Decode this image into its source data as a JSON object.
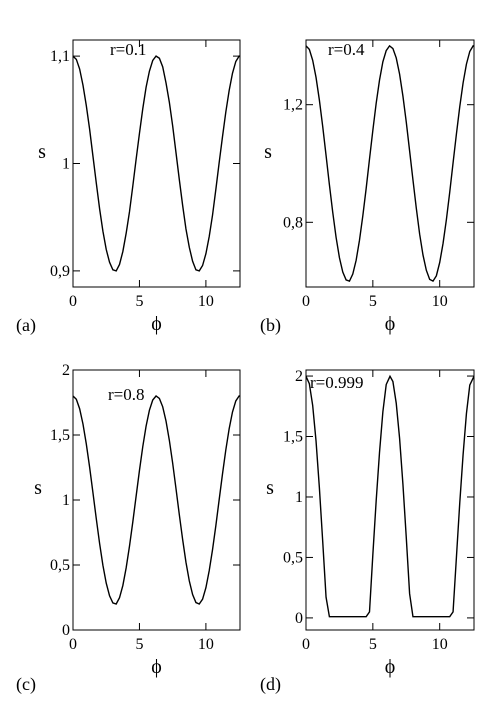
{
  "chart_data": [
    {
      "type": "line",
      "panel_label": "(a)",
      "annotation": "r=0.1",
      "xlabel": "ϕ",
      "ylabel": "s",
      "xlim": [
        0,
        12.566
      ],
      "ylim": [
        0.885,
        1.115
      ],
      "xticks": [
        0,
        5,
        10
      ],
      "xtick_labels": [
        "0",
        "5",
        "10"
      ],
      "yticks": [
        0.9,
        1.0,
        1.1
      ],
      "ytick_labels": [
        "0,9",
        "1",
        "1,1"
      ],
      "series": [
        {
          "x": [
            0,
            0.25,
            0.5,
            0.75,
            1,
            1.25,
            1.5,
            1.75,
            2,
            2.25,
            2.5,
            2.75,
            3,
            3.25,
            3.5,
            3.75,
            4,
            4.25,
            4.5,
            4.75,
            5,
            5.25,
            5.5,
            5.75,
            6,
            6.25,
            6.5,
            6.75,
            7,
            7.25,
            7.5,
            7.75,
            8,
            8.25,
            8.5,
            8.75,
            9,
            9.25,
            9.5,
            9.75,
            10,
            10.25,
            10.5,
            10.75,
            11,
            11.25,
            11.5,
            11.75,
            12,
            12.25,
            12.5,
            12.566
          ],
          "y": [
            1.1,
            1.097,
            1.088,
            1.073,
            1.054,
            1.032,
            1.007,
            0.982,
            0.958,
            0.937,
            0.92,
            0.908,
            0.901,
            0.9,
            0.906,
            0.918,
            0.935,
            0.955,
            0.979,
            1.004,
            1.028,
            1.051,
            1.071,
            1.086,
            1.096,
            1.1,
            1.098,
            1.09,
            1.075,
            1.057,
            1.035,
            1.01,
            0.985,
            0.961,
            0.939,
            0.922,
            0.909,
            0.901,
            0.9,
            0.905,
            0.916,
            0.932,
            0.952,
            0.976,
            1.001,
            1.025,
            1.048,
            1.068,
            1.084,
            1.095,
            1.1,
            1.1
          ]
        }
      ]
    },
    {
      "type": "line",
      "panel_label": "(b)",
      "annotation": "r=0.4",
      "xlabel": "ϕ",
      "ylabel": "s",
      "xlim": [
        0,
        12.566
      ],
      "ylim": [
        0.58,
        1.42
      ],
      "xticks": [
        0,
        5,
        10
      ],
      "xtick_labels": [
        "0",
        "5",
        "10"
      ],
      "yticks": [
        0.8,
        1.2
      ],
      "ytick_labels": [
        "0,8",
        "1,2"
      ],
      "series": [
        {
          "x": [
            0,
            0.25,
            0.5,
            0.75,
            1,
            1.25,
            1.5,
            1.75,
            2,
            2.25,
            2.5,
            2.75,
            3,
            3.25,
            3.5,
            3.75,
            4,
            4.25,
            4.5,
            4.75,
            5,
            5.25,
            5.5,
            5.75,
            6,
            6.25,
            6.5,
            6.75,
            7,
            7.25,
            7.5,
            7.75,
            8,
            8.25,
            8.5,
            8.75,
            9,
            9.25,
            9.5,
            9.75,
            10,
            10.25,
            10.5,
            10.75,
            11,
            11.25,
            11.5,
            11.75,
            12,
            12.25,
            12.5,
            12.566
          ],
          "y": [
            1.4,
            1.388,
            1.351,
            1.293,
            1.216,
            1.126,
            1.028,
            0.928,
            0.834,
            0.749,
            0.68,
            0.631,
            0.604,
            0.6,
            0.624,
            0.671,
            0.739,
            0.822,
            0.915,
            1.015,
            1.113,
            1.205,
            1.284,
            1.346,
            1.384,
            1.4,
            1.391,
            1.359,
            1.304,
            1.229,
            1.141,
            1.043,
            0.944,
            0.848,
            0.76,
            0.689,
            0.637,
            0.606,
            0.6,
            0.618,
            0.663,
            0.728,
            0.809,
            0.902,
            1.002,
            1.1,
            1.193,
            1.274,
            1.338,
            1.381,
            1.4,
            1.4
          ]
        }
      ]
    },
    {
      "type": "line",
      "panel_label": "(c)",
      "annotation": "r=0.8",
      "xlabel": "ϕ",
      "ylabel": "s",
      "xlim": [
        0,
        12.566
      ],
      "ylim": [
        0,
        2
      ],
      "xticks": [
        0,
        5,
        10
      ],
      "xtick_labels": [
        "0",
        "5",
        "10"
      ],
      "yticks": [
        0,
        0.5,
        1.0,
        1.5,
        2.0
      ],
      "ytick_labels": [
        "0",
        "0,5",
        "1",
        "1,5",
        "2"
      ],
      "series": [
        {
          "x": [
            0,
            0.25,
            0.5,
            0.75,
            1,
            1.25,
            1.5,
            1.75,
            2,
            2.25,
            2.5,
            2.75,
            3,
            3.25,
            3.5,
            3.75,
            4,
            4.25,
            4.5,
            4.75,
            5,
            5.25,
            5.5,
            5.75,
            6,
            6.25,
            6.5,
            6.75,
            7,
            7.25,
            7.5,
            7.75,
            8,
            8.25,
            8.5,
            8.75,
            9,
            9.25,
            9.5,
            9.75,
            10,
            10.25,
            10.5,
            10.75,
            11,
            11.25,
            11.5,
            11.75,
            12,
            12.25,
            12.5,
            12.566
          ],
          "y": [
            1.8,
            1.775,
            1.702,
            1.585,
            1.432,
            1.253,
            1.057,
            0.857,
            0.667,
            0.498,
            0.361,
            0.263,
            0.208,
            0.2,
            0.248,
            0.342,
            0.478,
            0.644,
            0.831,
            1.03,
            1.227,
            1.41,
            1.568,
            1.691,
            1.769,
            1.8,
            1.781,
            1.717,
            1.607,
            1.459,
            1.283,
            1.087,
            0.887,
            0.696,
            0.521,
            0.378,
            0.273,
            0.211,
            0.2,
            0.237,
            0.325,
            0.457,
            0.618,
            0.804,
            1.004,
            1.201,
            1.386,
            1.548,
            1.677,
            1.762,
            1.8,
            1.8
          ]
        }
      ]
    },
    {
      "type": "line",
      "panel_label": "(d)",
      "annotation": "r=0.999",
      "xlabel": "ϕ",
      "ylabel": "s",
      "xlim": [
        0,
        12.566
      ],
      "ylim": [
        -0.1,
        2.05
      ],
      "xticks": [
        0,
        5,
        10
      ],
      "xtick_labels": [
        "0",
        "5",
        "10"
      ],
      "yticks": [
        0,
        0.5,
        1.0,
        1.5,
        2.0
      ],
      "ytick_labels": [
        "0",
        "0,5",
        "1",
        "1,5",
        "2"
      ],
      "series": [
        {
          "x": [
            0,
            0.25,
            0.5,
            0.75,
            1,
            1.25,
            1.5,
            1.75,
            2,
            2.5,
            3,
            3.5,
            4,
            4.5,
            4.75,
            5,
            5.25,
            5.5,
            5.75,
            6,
            6.283,
            6.5,
            6.75,
            7,
            7.25,
            7.5,
            7.75,
            8,
            8.5,
            9,
            9.5,
            10,
            10.5,
            10.75,
            11,
            11.25,
            11.5,
            11.75,
            12,
            12.25,
            12.566
          ],
          "y": [
            1.998,
            1.937,
            1.757,
            1.463,
            1.078,
            0.633,
            0.172,
            0.01,
            0.01,
            0.01,
            0.01,
            0.01,
            0.01,
            0.01,
            0.05,
            0.524,
            0.97,
            1.37,
            1.704,
            1.93,
            1.998,
            1.955,
            1.775,
            1.485,
            1.105,
            0.665,
            0.2,
            0.01,
            0.01,
            0.01,
            0.01,
            0.01,
            0.01,
            0.01,
            0.05,
            0.5,
            0.95,
            1.35,
            1.69,
            1.925,
            1.998
          ]
        }
      ]
    }
  ]
}
